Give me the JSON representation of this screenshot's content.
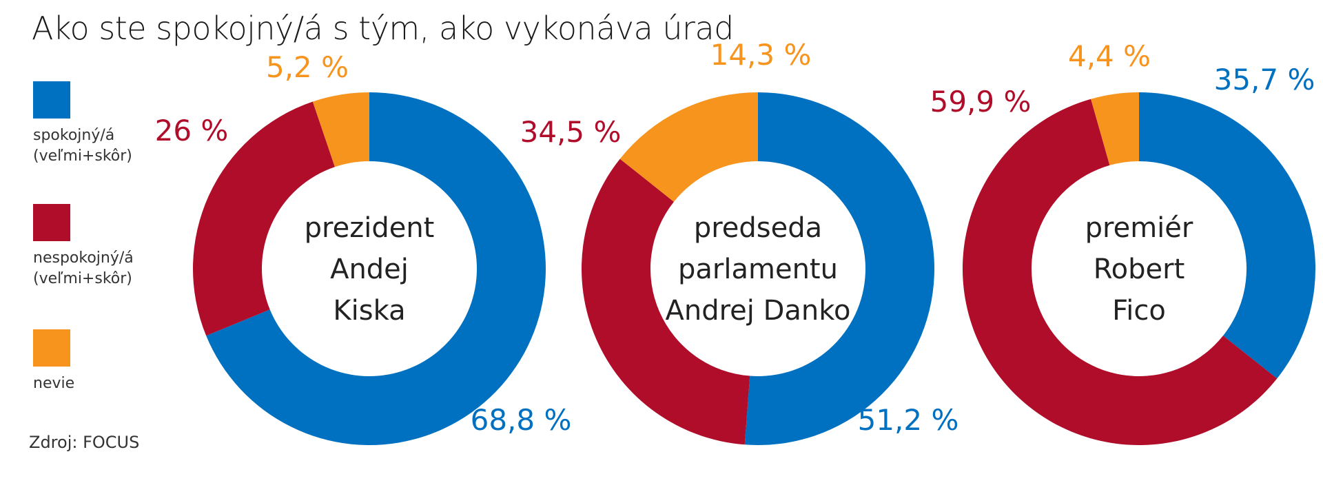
{
  "title": "Ako ste spokojný/á s tým, ako vykonáva úrad",
  "source": "Zdroj: FOCUS",
  "colors": {
    "satisfied": "#0070c0",
    "dissatisfied": "#b00d2a",
    "unknown": "#f7941d"
  },
  "legend": [
    {
      "key": "satisfied",
      "label": "spokojný/á\n(veľmi+skôr)"
    },
    {
      "key": "dissatisfied",
      "label": "nespokojný/á\n(veľmi+skôr)"
    },
    {
      "key": "unknown",
      "label": "nevie"
    }
  ],
  "chart_data": [
    {
      "type": "pie",
      "center_label": [
        "prezident",
        "Andej",
        "Kiska"
      ],
      "slices": [
        {
          "key": "satisfied",
          "value": 68.8,
          "label": "68,8 %"
        },
        {
          "key": "dissatisfied",
          "value": 26.0,
          "label": "26 %"
        },
        {
          "key": "unknown",
          "value": 5.2,
          "label": "5,2 %"
        }
      ]
    },
    {
      "type": "pie",
      "center_label": [
        "predseda",
        "parlamentu",
        "Andrej Danko"
      ],
      "slices": [
        {
          "key": "satisfied",
          "value": 51.2,
          "label": "51,2 %"
        },
        {
          "key": "dissatisfied",
          "value": 34.5,
          "label": "34,5 %"
        },
        {
          "key": "unknown",
          "value": 14.3,
          "label": "14,3 %"
        }
      ]
    },
    {
      "type": "pie",
      "center_label": [
        "premiér",
        "Robert",
        "Fico"
      ],
      "slices": [
        {
          "key": "satisfied",
          "value": 35.7,
          "label": "35,7 %"
        },
        {
          "key": "dissatisfied",
          "value": 59.9,
          "label": "59,9 %"
        },
        {
          "key": "unknown",
          "value": 4.4,
          "label": "4,4 %"
        }
      ]
    }
  ]
}
